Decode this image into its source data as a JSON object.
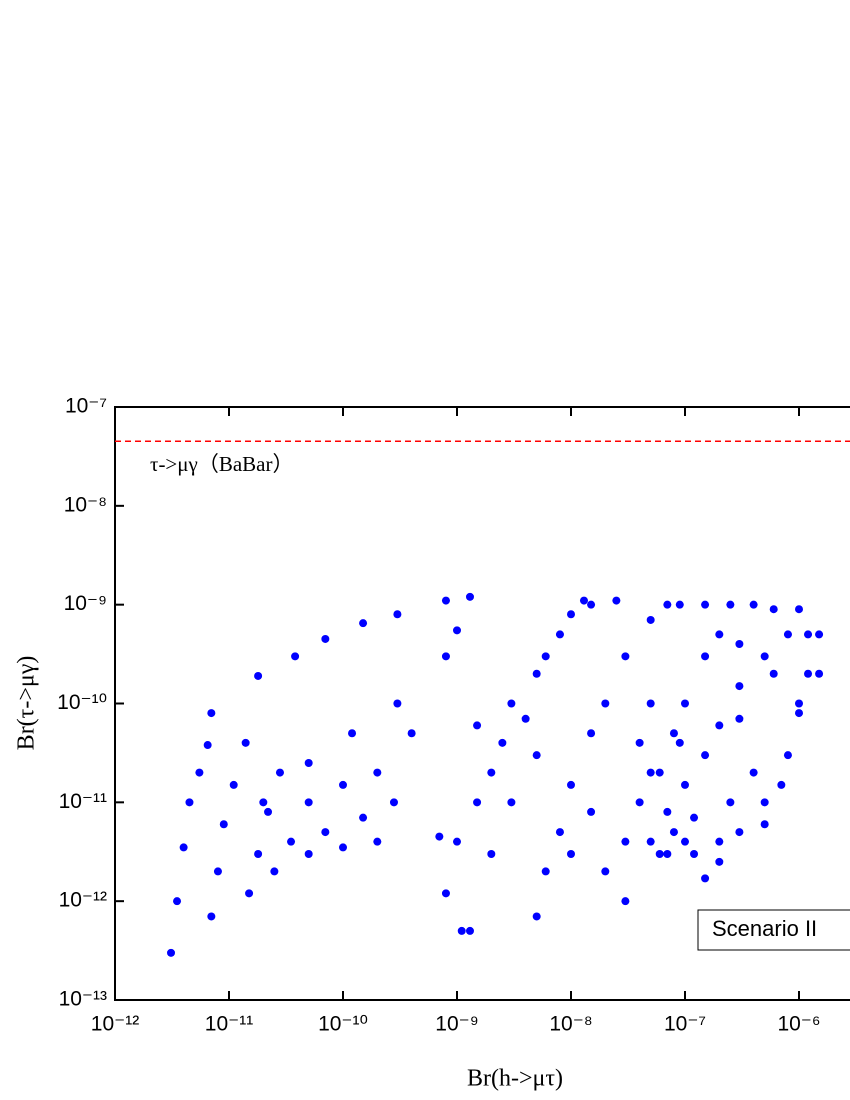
{
  "chart_data": {
    "type": "scatter",
    "xlabel": "Br(h->μτ)",
    "ylabel": "Br(τ->μγ)",
    "log_x": true,
    "log_y": true,
    "color": "#0000ff",
    "xlim": [
      1e-12,
      1e-05
    ],
    "ylim": [
      1e-13,
      1e-07
    ],
    "xticks": [
      {
        "value": 1e-12,
        "label": "10⁻¹²"
      },
      {
        "value": 1e-11,
        "label": "10⁻¹¹"
      },
      {
        "value": 1e-10,
        "label": "10⁻¹⁰"
      },
      {
        "value": 1e-09,
        "label": "10⁻⁹"
      },
      {
        "value": 1e-08,
        "label": "10⁻⁸"
      },
      {
        "value": 1e-07,
        "label": "10⁻⁷"
      },
      {
        "value": 1e-06,
        "label": "10⁻⁶"
      }
    ],
    "yticks": [
      {
        "value": 1e-13,
        "label": "10⁻¹³"
      },
      {
        "value": 1e-12,
        "label": "10⁻¹²"
      },
      {
        "value": 1e-11,
        "label": "10⁻¹¹"
      },
      {
        "value": 1e-10,
        "label": "10⁻¹⁰"
      },
      {
        "value": 1e-09,
        "label": "10⁻⁹"
      },
      {
        "value": 1e-08,
        "label": "10⁻⁸"
      },
      {
        "value": 1e-07,
        "label": "10⁻⁷"
      }
    ],
    "reference_line": {
      "value": 4.5e-08,
      "label": "τ->μγ（BaBar）",
      "color": "#ff0000"
    },
    "legend_text": "Scenario II",
    "x": [
      3.1e-12,
      3.5e-12,
      4e-12,
      4.5e-12,
      5.5e-12,
      6.5e-12,
      7e-12,
      7e-12,
      8e-12,
      9e-12,
      1.1e-11,
      1.4e-11,
      1.8e-11,
      1.5e-11,
      1.8e-11,
      2.2e-11,
      2.8e-11,
      3.8e-11,
      2.5e-11,
      3.5e-11,
      5e-11,
      7e-11,
      5e-11,
      7e-11,
      1e-10,
      1.5e-10,
      1e-10,
      1.5e-10,
      2e-10,
      3e-10,
      2e-10,
      2.8e-10,
      4e-10,
      8e-10,
      1.3e-09,
      2e-11,
      5e-11,
      1.2e-10,
      3e-10,
      8e-10,
      1e-09,
      7e-10,
      8e-10,
      1.1e-09,
      1.3e-09,
      1e-09,
      1.5e-09,
      2e-09,
      1.5e-09,
      2.5e-09,
      3e-09,
      4e-09,
      5e-09,
      6e-09,
      8e-09,
      1e-08,
      1.3e-08,
      2e-09,
      3e-09,
      5e-09,
      5e-09,
      6e-09,
      8e-09,
      1e-08,
      1.5e-08,
      2e-08,
      3e-08,
      5e-08,
      7e-08,
      1.5e-08,
      2.5e-08,
      1e-08,
      1.5e-08,
      2e-08,
      3e-08,
      4e-08,
      5e-08,
      3e-08,
      6e-08,
      8e-08,
      1e-07,
      1.2e-07,
      7e-08,
      1e-07,
      1.5e-07,
      2e-07,
      3e-07,
      5e-07,
      8e-07,
      1.5e-07,
      2.5e-07,
      4e-07,
      6e-07,
      1e-06,
      1.5e-06,
      1.2e-06,
      1e-06,
      8e-07,
      5e-07,
      3e-07,
      2e-07,
      1.5e-07,
      6e-08,
      8e-08,
      1e-07,
      1.5e-07,
      2e-07,
      9e-08,
      5e-08,
      4e-08,
      1.5e-06,
      7e-07,
      4e-07,
      2.5e-07,
      1.2e-07,
      9e-08,
      3e-07,
      6e-07,
      5e-08,
      7e-08,
      2e-07,
      5e-07,
      1e-06,
      3e-07,
      1.2e-06
    ],
    "values": [
      3e-13,
      1e-12,
      3.5e-12,
      1e-11,
      2e-11,
      3.8e-11,
      8e-11,
      7e-13,
      2e-12,
      6e-12,
      1.5e-11,
      4e-11,
      1.9e-10,
      1.2e-12,
      3e-12,
      8e-12,
      2e-11,
      3e-10,
      2e-12,
      4e-12,
      1e-11,
      4.5e-10,
      3e-12,
      5e-12,
      1.5e-11,
      6.5e-10,
      3.5e-12,
      7e-12,
      2e-11,
      8e-10,
      4e-12,
      1e-11,
      5e-11,
      1.1e-09,
      1.2e-09,
      1e-11,
      2.5e-11,
      5e-11,
      1e-10,
      3e-10,
      5.5e-10,
      4.5e-12,
      1.2e-12,
      5e-13,
      5e-13,
      4e-12,
      1e-11,
      2e-11,
      6e-11,
      4e-11,
      1e-10,
      7e-11,
      2e-10,
      3e-10,
      5e-10,
      8e-10,
      1.1e-09,
      3e-12,
      1e-11,
      3e-11,
      7e-13,
      2e-12,
      5e-12,
      1.5e-11,
      5e-11,
      1e-10,
      3e-10,
      7e-10,
      1e-09,
      1e-09,
      1.1e-09,
      3e-12,
      8e-12,
      2e-12,
      4e-12,
      1e-11,
      2e-11,
      1e-12,
      3e-12,
      5e-12,
      4e-12,
      3e-12,
      8e-12,
      1.5e-11,
      3e-11,
      6e-11,
      1.5e-10,
      3e-10,
      5e-10,
      1e-09,
      1e-09,
      1e-09,
      9e-10,
      9e-10,
      5e-10,
      2e-10,
      8e-11,
      3e-11,
      1e-11,
      5e-12,
      2.5e-12,
      1.7e-12,
      2e-11,
      5e-11,
      1e-10,
      3e-10,
      5e-10,
      1e-09,
      1e-10,
      4e-11,
      2e-10,
      1.5e-11,
      2e-11,
      1e-11,
      7e-12,
      4e-11,
      4e-10,
      2e-10,
      4e-12,
      3e-12,
      4e-12,
      6e-12,
      1e-10,
      7e-11,
      5e-10
    ]
  }
}
